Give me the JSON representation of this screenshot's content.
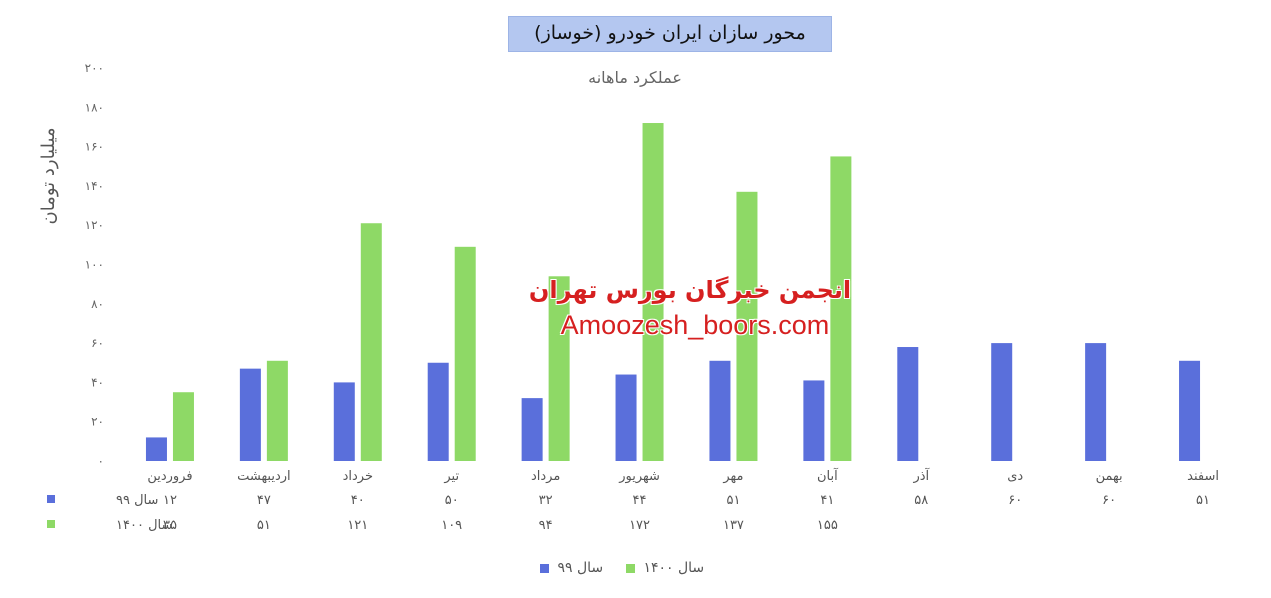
{
  "title": "محور سازان ایران خودرو (خوساز)",
  "subtitle": "عملکرد ماهانه",
  "watermark": {
    "line1": "انجمن خبرگان بورس تهران",
    "line2": "Amoozesh_boors.com"
  },
  "colors": {
    "series1": "#5a6fdb",
    "series2": "#8ed966",
    "title_bg": "#b4c7f0",
    "watermark": "#d62020"
  },
  "chart_data": {
    "type": "bar",
    "ylabel": "میلیارد تومان",
    "ylim": [
      0,
      200
    ],
    "yticks": [
      0,
      20,
      40,
      60,
      80,
      100,
      120,
      140,
      160,
      180,
      200
    ],
    "ytick_labels": [
      "۰",
      "۲۰",
      "۴۰",
      "۶۰",
      "۸۰",
      "۱۰۰",
      "۱۲۰",
      "۱۴۰",
      "۱۶۰",
      "۱۸۰",
      "۲۰۰"
    ],
    "categories": [
      "فروردین",
      "اردیبهشت",
      "خرداد",
      "تیر",
      "مرداد",
      "شهریور",
      "مهر",
      "آبان",
      "آذر",
      "دی",
      "بهمن",
      "اسفند"
    ],
    "series": [
      {
        "name": "سال ۹۹",
        "values": [
          12,
          47,
          40,
          50,
          32,
          44,
          51,
          41,
          58,
          60,
          60,
          51
        ],
        "value_labels": [
          "۱۲",
          "۴۷",
          "۴۰",
          "۵۰",
          "۳۲",
          "۴۴",
          "۵۱",
          "۴۱",
          "۵۸",
          "۶۰",
          "۶۰",
          "۵۱"
        ]
      },
      {
        "name": "سال ۱۴۰۰",
        "values": [
          35,
          51,
          121,
          109,
          94,
          172,
          137,
          155,
          null,
          null,
          null,
          null
        ],
        "value_labels": [
          "۳۵",
          "۵۱",
          "۱۲۱",
          "۱۰۹",
          "۹۴",
          "۱۷۲",
          "۱۳۷",
          "۱۵۵",
          "",
          "",
          "",
          ""
        ]
      }
    ],
    "legend_position": "bottom",
    "grid": false
  }
}
